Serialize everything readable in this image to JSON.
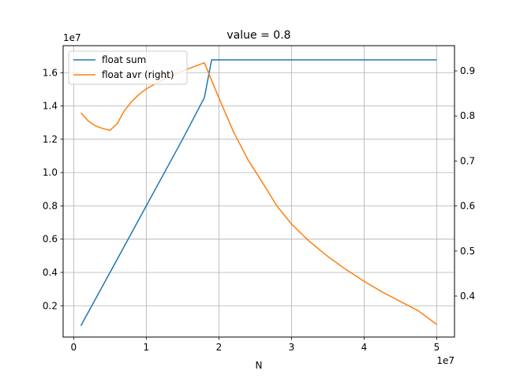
{
  "chart_data": {
    "type": "line",
    "title": "value = 0.8",
    "xlabel": "N",
    "ylabel": "",
    "x_offset_label": "1e7",
    "y_offset_label": "1e7",
    "xlim": [
      -0.145,
      5.245
    ],
    "ylim": [
      0.012,
      1.762
    ],
    "y2lim": [
      0.309,
      0.956
    ],
    "x_ticks": [
      0,
      1,
      2,
      3,
      4,
      5
    ],
    "x_tick_labels": [
      "0",
      "1",
      "2",
      "3",
      "4",
      "5"
    ],
    "y_ticks": [
      0.2,
      0.4,
      0.6,
      0.8,
      1.0,
      1.2,
      1.4,
      1.6
    ],
    "y_tick_labels": [
      "0.2",
      "0.4",
      "0.6",
      "0.8",
      "1.0",
      "1.2",
      "1.4",
      "1.6"
    ],
    "y2_ticks": [
      0.4,
      0.5,
      0.6,
      0.7,
      0.8,
      0.9
    ],
    "y2_tick_labels": [
      "0.4",
      "0.5",
      "0.6",
      "0.7",
      "0.8",
      "0.9"
    ],
    "grid": true,
    "legend_position": "top-left",
    "series": [
      {
        "name": "float sum",
        "axis": "left",
        "color": "#1f77b4",
        "x": [
          0.1,
          0.5,
          0.6,
          1.0,
          1.5,
          1.8,
          1.9,
          2.0,
          3.0,
          4.0,
          5.0
        ],
        "y": [
          0.08,
          0.4,
          0.48,
          0.8,
          1.2,
          1.45,
          1.677,
          1.677,
          1.677,
          1.677,
          1.677
        ]
      },
      {
        "name": "float avr (right)",
        "axis": "right",
        "color": "#ff7f0e",
        "x": [
          0.1,
          0.2,
          0.3,
          0.4,
          0.5,
          0.6,
          0.7,
          0.8,
          0.9,
          1.0,
          1.2,
          1.4,
          1.6,
          1.8,
          2.0,
          2.2,
          2.4,
          2.6,
          2.8,
          3.0,
          3.25,
          3.5,
          3.75,
          4.0,
          4.25,
          4.5,
          4.75,
          5.0
        ],
        "y": [
          0.807,
          0.789,
          0.778,
          0.772,
          0.768,
          0.783,
          0.812,
          0.832,
          0.848,
          0.86,
          0.878,
          0.893,
          0.906,
          0.918,
          0.84,
          0.765,
          0.703,
          0.652,
          0.6,
          0.56,
          0.521,
          0.488,
          0.459,
          0.433,
          0.409,
          0.388,
          0.367,
          0.337
        ]
      }
    ]
  }
}
